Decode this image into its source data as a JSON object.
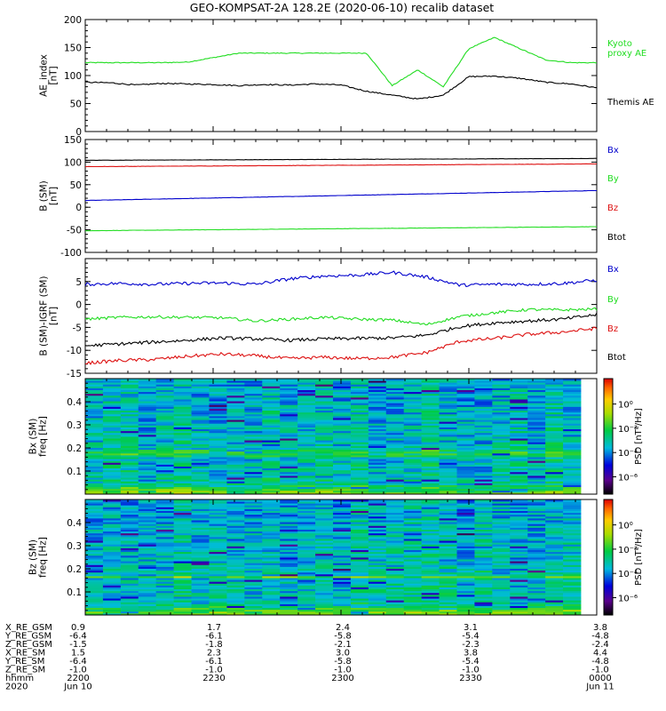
{
  "title": "GEO-KOMPSAT-2A 128.2E (2020-06-10) recalib dataset",
  "colors": {
    "kyoto": "#22dd22",
    "themis": "#000000",
    "bx": "#0000cc",
    "by": "#22dd22",
    "bz": "#dd1111",
    "btot": "#000000"
  },
  "chart_data": [
    {
      "type": "line",
      "ylabel": "AE_index\n[nT]",
      "ylim": [
        0,
        200
      ],
      "yticks": [
        0,
        50,
        100,
        150,
        200
      ],
      "x": [
        0,
        3,
        6,
        9,
        12,
        15,
        18,
        21,
        24,
        27,
        30,
        33,
        36,
        39,
        42,
        45,
        48,
        51,
        54,
        57,
        60
      ],
      "series": [
        {
          "name": "Kyoto\nproxy AE",
          "color_key": "kyoto",
          "values": [
            123,
            123,
            123,
            123,
            124,
            132,
            140,
            140,
            140,
            140,
            140,
            140,
            82,
            110,
            80,
            148,
            168,
            148,
            128,
            123,
            123
          ]
        },
        {
          "name": "Themis AE",
          "color_key": "themis",
          "values": [
            88,
            87,
            83,
            86,
            85,
            84,
            82,
            84,
            83,
            85,
            83,
            72,
            65,
            58,
            65,
            98,
            99,
            95,
            88,
            85,
            78
          ]
        }
      ]
    },
    {
      "type": "line",
      "ylabel": "B (SM)\n[nT]",
      "ylim": [
        -100,
        150
      ],
      "yticks": [
        -100,
        -50,
        0,
        50,
        100,
        150
      ],
      "x": [
        0,
        60
      ],
      "series": [
        {
          "name": "Bx",
          "color_key": "bx",
          "values": [
            15,
            37
          ]
        },
        {
          "name": "By",
          "color_key": "by",
          "values": [
            -52,
            -43
          ]
        },
        {
          "name": "Bz",
          "color_key": "bz",
          "values": [
            90,
            96
          ]
        },
        {
          "name": "Btot",
          "color_key": "btot",
          "values": [
            104,
            108
          ]
        }
      ]
    },
    {
      "type": "line",
      "ylabel": "B (SM)-IGRF (SM)\n[nT]",
      "ylim": [
        -15,
        10
      ],
      "yticks": [
        -15,
        -10,
        -5,
        0,
        5
      ],
      "x": [
        0,
        4,
        8,
        12,
        16,
        20,
        24,
        28,
        32,
        36,
        40,
        44,
        48,
        52,
        56,
        60
      ],
      "series": [
        {
          "name": "Bx",
          "color_key": "bx",
          "values": [
            4.4,
            4.6,
            4.4,
            4.6,
            4.7,
            4.4,
            5.6,
            6.2,
            6.4,
            7.0,
            6.0,
            4.2,
            4.4,
            4.4,
            4.6,
            5.3
          ]
        },
        {
          "name": "By",
          "color_key": "by",
          "values": [
            -3.2,
            -2.8,
            -2.7,
            -2.8,
            -2.9,
            -3.6,
            -3.2,
            -2.8,
            -3.2,
            -3.4,
            -4.4,
            -2.6,
            -1.8,
            -1.1,
            -1.2,
            -1.0
          ]
        },
        {
          "name": "Bz",
          "color_key": "bz",
          "values": [
            -12.8,
            -12.2,
            -12.0,
            -11.3,
            -10.8,
            -11.2,
            -11.8,
            -11.5,
            -11.8,
            -11.5,
            -10.5,
            -8.0,
            -7.4,
            -6.5,
            -6.0,
            -5.2
          ]
        },
        {
          "name": "Btot",
          "color_key": "btot",
          "values": [
            -9.0,
            -8.6,
            -8.2,
            -7.8,
            -7.3,
            -7.5,
            -7.8,
            -7.5,
            -7.4,
            -7.3,
            -6.7,
            -4.8,
            -4.0,
            -3.6,
            -3.2,
            -2.2
          ]
        }
      ]
    },
    {
      "type": "heatmap",
      "ylabel": "Bx (SM)\nfreq [Hz]",
      "ylim": [
        0,
        0.5
      ],
      "yticks": [
        "0.1",
        "0.2",
        "0.3",
        "0.4"
      ],
      "colorbar_label": "PSD [nT²/Hz]",
      "colorbar_ticks": [
        "10⁰",
        "10⁻²",
        "10⁻⁴",
        "10⁻⁶"
      ]
    },
    {
      "type": "heatmap",
      "ylabel": "Bz (SM)\nfreq [Hz]",
      "ylim": [
        0,
        0.5
      ],
      "yticks": [
        "0.1",
        "0.2",
        "0.3",
        "0.4"
      ],
      "colorbar_label": "PSD [nT²/Hz]",
      "colorbar_ticks": [
        "10⁰",
        "10⁻²",
        "10⁻⁴",
        "10⁻⁶"
      ]
    }
  ],
  "ephemeris": {
    "labels": [
      "X_RE_GSM",
      "Y_RE_GSM",
      "Z_RE_GSM",
      "X_RE_SM",
      "Y_RE_SM",
      "Z_RE_SM",
      "hhmm",
      "2020"
    ],
    "columns": [
      [
        "0.9",
        "-6.4",
        "-1.5",
        "1.5",
        "-6.4",
        "-1.0",
        "2200",
        "Jun 10"
      ],
      [
        "1.7",
        "-6.1",
        "-1.8",
        "2.3",
        "-6.1",
        "-1.0",
        "2230",
        ""
      ],
      [
        "2.4",
        "-5.8",
        "-2.1",
        "3.0",
        "-5.8",
        "-1.0",
        "2300",
        ""
      ],
      [
        "3.1",
        "-5.4",
        "-2.3",
        "3.8",
        "-5.4",
        "-1.0",
        "2330",
        ""
      ],
      [
        "3.8",
        "-4.8",
        "-2.4",
        "4.4",
        "-4.8",
        "-1.0",
        "0000",
        "Jun 11"
      ]
    ]
  }
}
